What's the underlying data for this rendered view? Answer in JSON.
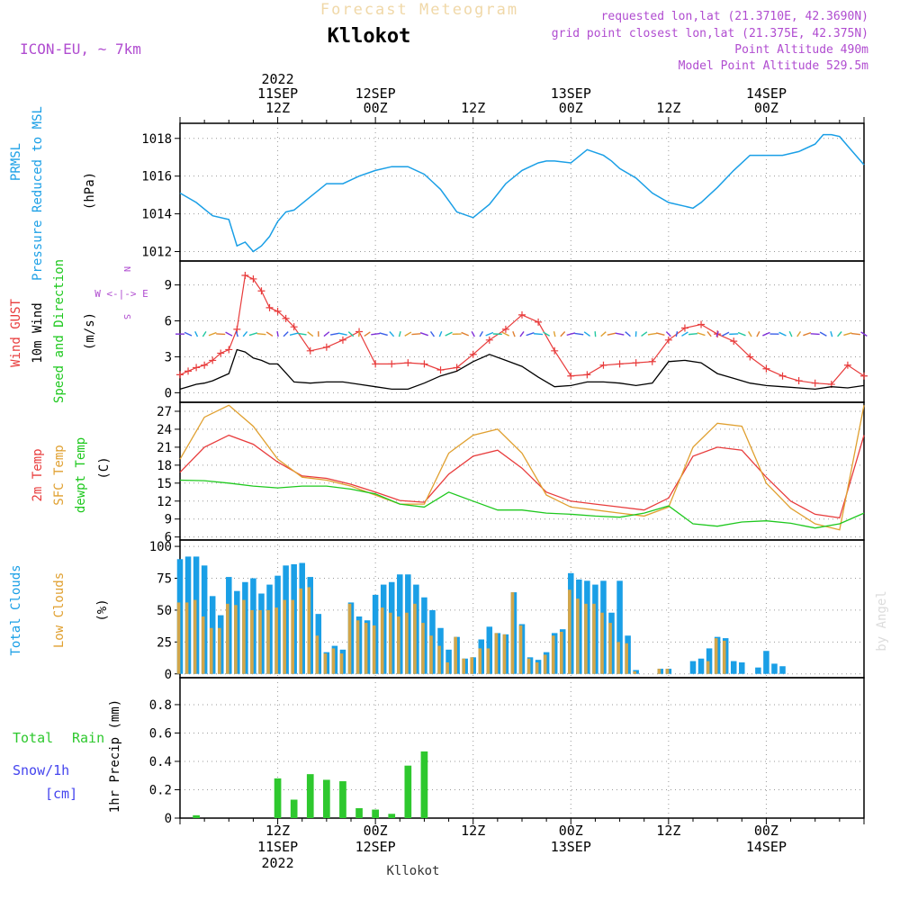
{
  "header": {
    "title": "Forecast Meteogram",
    "location": "Kllokot",
    "model": "ICON-EU, ~ 7km",
    "requested": "requested lon,lat (21.3710E, 42.3690N)",
    "gridpoint": "grid point closest lon,lat (21.375E, 42.375N)",
    "point_alt": "Point Altitude 490m",
    "model_alt": "Model Point Altitude 529.5m",
    "footer_location": "Kllokot",
    "watermark": "by Angel"
  },
  "time_axis": {
    "year": "2022",
    "major_ticks": [
      {
        "hour": 12,
        "line1": "12Z",
        "line2": "11SEP",
        "line3": "2022"
      },
      {
        "hour": 24,
        "line1": "00Z",
        "line2": "12SEP",
        "line3": ""
      },
      {
        "hour": 36,
        "line1": "12Z",
        "line2": "",
        "line3": ""
      },
      {
        "hour": 48,
        "line1": "00Z",
        "line2": "13SEP",
        "line3": ""
      },
      {
        "hour": 60,
        "line1": "12Z",
        "line2": "",
        "line3": ""
      },
      {
        "hour": 72,
        "line1": "00Z",
        "line2": "14SEP",
        "line3": ""
      }
    ],
    "top_labels": [
      {
        "hour": 12,
        "lines": [
          "2022",
          "11SEP",
          "12Z"
        ]
      },
      {
        "hour": 24,
        "lines": [
          "12SEP",
          "00Z"
        ]
      },
      {
        "hour": 36,
        "lines": [
          "12Z"
        ]
      },
      {
        "hour": 48,
        "lines": [
          "13SEP",
          "00Z"
        ]
      },
      {
        "hour": 60,
        "lines": [
          "12Z"
        ]
      },
      {
        "hour": 72,
        "lines": [
          "14SEP",
          "00Z"
        ]
      }
    ],
    "bottom_labels": [
      {
        "hour": 12,
        "lines": [
          "12Z",
          "11SEP",
          "2022"
        ]
      },
      {
        "hour": 24,
        "lines": [
          "00Z",
          "12SEP"
        ]
      },
      {
        "hour": 36,
        "lines": [
          "12Z"
        ]
      },
      {
        "hour": 48,
        "lines": [
          "00Z",
          "13SEP"
        ]
      },
      {
        "hour": 60,
        "lines": [
          "12Z"
        ]
      },
      {
        "hour": 72,
        "lines": [
          "00Z",
          "14SEP"
        ]
      }
    ]
  },
  "panel_labels": {
    "pressure": [
      "PRMSL",
      "Pressure Reduced to MSL",
      "(hPa)"
    ],
    "wind": [
      "Wind GUST",
      "10m Wind",
      "Speed and Direction",
      "(m/s)"
    ],
    "compass": [
      "N",
      "W <-|-> E",
      "S"
    ],
    "temp": [
      "2m Temp",
      "SFC Temp",
      "dewpt Temp",
      "(C)"
    ],
    "clouds": [
      "Total Clouds",
      "Low Clouds",
      "(%)"
    ],
    "precip": [
      "Total",
      "Rain",
      "Snow/1h",
      "[cm]",
      "1hr Precip (mm)"
    ]
  },
  "colors": {
    "pressure": "#1a9fe6",
    "gust": "#e83c3c",
    "wind": "#000000",
    "t2m": "#e83c3c",
    "sfc": "#e0a030",
    "dewpt": "#1ec81e",
    "total_clouds": "#1a9fe6",
    "low_clouds": "#d2a64a",
    "rain": "#2ec82e",
    "snow": "#4444ee",
    "meta": "#b04cd0",
    "title_faded": "#f0d8a8"
  },
  "chart_data": [
    {
      "type": "line",
      "name": "pressure",
      "ylim": [
        1011.5,
        1018.8
      ],
      "yticks": [
        1012,
        1014,
        1016,
        1018
      ],
      "x": [
        0,
        2,
        4,
        6,
        7,
        8,
        9,
        10,
        11,
        12,
        13,
        14,
        16,
        18,
        20,
        22,
        24,
        26,
        28,
        30,
        31,
        32,
        33,
        34,
        36,
        38,
        40,
        42,
        43,
        44,
        45,
        46,
        48,
        50,
        52,
        53,
        54,
        56,
        58,
        60,
        62,
        63,
        64,
        66,
        68,
        70,
        72,
        74,
        76,
        78,
        79,
        80,
        81,
        82,
        84
      ],
      "values": [
        1015.1,
        1014.6,
        1013.9,
        1013.7,
        1012.3,
        1012.5,
        1012.0,
        1012.3,
        1012.8,
        1013.6,
        1014.1,
        1014.2,
        1014.9,
        1015.6,
        1015.6,
        1016.0,
        1016.3,
        1016.5,
        1016.5,
        1016.1,
        1015.7,
        1015.3,
        1014.7,
        1014.1,
        1013.8,
        1014.5,
        1015.6,
        1016.3,
        1016.5,
        1016.7,
        1016.8,
        1016.8,
        1016.7,
        1017.4,
        1017.1,
        1016.8,
        1016.4,
        1015.9,
        1015.1,
        1014.6,
        1014.4,
        1014.3,
        1014.6,
        1015.4,
        1016.3,
        1017.1,
        1017.1,
        1017.1,
        1017.3,
        1017.7,
        1018.2,
        1018.2,
        1018.1,
        1017.6,
        1016.6
      ]
    },
    {
      "type": "line",
      "name": "wind_gust",
      "ylim": [
        -0.8,
        11
      ],
      "yticks": [
        0,
        3,
        6,
        9
      ],
      "x": [
        0,
        1,
        2,
        3,
        4,
        5,
        6,
        7,
        8,
        9,
        10,
        11,
        12,
        13,
        14,
        16,
        18,
        20,
        22,
        24,
        26,
        28,
        30,
        32,
        34,
        36,
        38,
        40,
        42,
        44,
        46,
        48,
        50,
        52,
        54,
        56,
        58,
        60,
        62,
        64,
        66,
        68,
        70,
        72,
        74,
        76,
        78,
        80,
        82,
        84
      ],
      "values": [
        1.5,
        1.8,
        2.1,
        2.3,
        2.7,
        3.3,
        3.6,
        5.3,
        9.8,
        9.5,
        8.5,
        7.1,
        6.8,
        6.2,
        5.5,
        3.5,
        3.8,
        4.4,
        5.1,
        2.4,
        2.4,
        2.5,
        2.4,
        1.9,
        2.1,
        3.2,
        4.4,
        5.3,
        6.5,
        5.9,
        3.5,
        1.4,
        1.5,
        2.3,
        2.4,
        2.5,
        2.6,
        4.4,
        5.4,
        5.7,
        4.9,
        4.3,
        3.0,
        2.0,
        1.4,
        1.0,
        0.8,
        0.7,
        2.3,
        1.4
      ]
    },
    {
      "type": "line",
      "name": "wind_10m",
      "ylim": [
        -0.8,
        11
      ],
      "x": [
        0,
        1,
        2,
        3,
        4,
        5,
        6,
        7,
        8,
        9,
        10,
        11,
        12,
        14,
        16,
        18,
        20,
        22,
        24,
        26,
        28,
        30,
        32,
        34,
        35,
        36,
        37,
        38,
        40,
        42,
        44,
        46,
        48,
        50,
        52,
        54,
        56,
        58,
        60,
        62,
        64,
        66,
        68,
        70,
        72,
        74,
        76,
        78,
        80,
        82,
        84
      ],
      "values": [
        0.3,
        0.5,
        0.7,
        0.8,
        1.0,
        1.3,
        1.6,
        3.6,
        3.4,
        2.9,
        2.7,
        2.4,
        2.4,
        0.9,
        0.8,
        0.9,
        0.9,
        0.7,
        0.5,
        0.3,
        0.3,
        0.8,
        1.4,
        1.8,
        2.2,
        2.6,
        2.9,
        3.2,
        2.7,
        2.2,
        1.3,
        0.5,
        0.6,
        0.9,
        0.9,
        0.8,
        0.6,
        0.8,
        2.6,
        2.7,
        2.5,
        1.6,
        1.2,
        0.8,
        0.6,
        0.5,
        0.4,
        0.3,
        0.5,
        0.4,
        0.6
      ]
    },
    {
      "type": "line",
      "name": "temperature",
      "ylim": [
        5.5,
        28.5
      ],
      "yticks": [
        6,
        9,
        12,
        15,
        18,
        21,
        24,
        27
      ],
      "x": [
        0,
        3,
        6,
        9,
        12,
        15,
        18,
        21,
        24,
        27,
        30,
        33,
        36,
        39,
        42,
        45,
        48,
        51,
        54,
        57,
        60,
        63,
        66,
        69,
        72,
        75,
        78,
        81,
        84
      ],
      "series": [
        {
          "name": "2m Temp",
          "values": [
            16.8,
            21,
            23,
            21.5,
            18.5,
            16.2,
            15.8,
            14.8,
            13.5,
            12.1,
            11.8,
            16.5,
            19.5,
            20.5,
            17.5,
            13.5,
            12,
            11.5,
            11,
            10.5,
            12.5,
            19.5,
            21,
            20.5,
            16,
            12,
            9.8,
            9.2,
            23
          ]
        },
        {
          "name": "SFC Temp",
          "values": [
            19,
            26,
            28,
            24.5,
            19,
            16,
            15.5,
            14.5,
            13,
            11.5,
            11.5,
            20,
            23,
            24,
            20,
            13,
            11,
            10.5,
            10,
            9.5,
            11,
            21,
            25,
            24.5,
            15,
            10.8,
            8.2,
            7.2,
            28
          ]
        },
        {
          "name": "dewpt Temp",
          "values": [
            15.5,
            15.4,
            15,
            14.5,
            14.2,
            14.5,
            14.5,
            14,
            13.2,
            11.5,
            11,
            13.5,
            12,
            10.5,
            10.5,
            10,
            9.8,
            9.5,
            9.3,
            10,
            11.2,
            8.2,
            7.8,
            8.5,
            8.7,
            8.3,
            7.5,
            8.2,
            10
          ]
        }
      ]
    },
    {
      "type": "bar",
      "name": "clouds",
      "ylim": [
        -3,
        105
      ],
      "yticks": [
        0,
        25,
        50,
        75,
        100
      ],
      "x_start": 0,
      "x_step": 1,
      "series": [
        {
          "name": "Total Clouds",
          "values": [
            90,
            92,
            92,
            85,
            61,
            46,
            76,
            65,
            72,
            75,
            63,
            70,
            77,
            85,
            86,
            87,
            76,
            47,
            17,
            22,
            19,
            56,
            45,
            42,
            62,
            70,
            72,
            78,
            78,
            70,
            60,
            50,
            36,
            19,
            29,
            12,
            13,
            27,
            37,
            32,
            31,
            64,
            39,
            13,
            11,
            17,
            32,
            35,
            79,
            74,
            73,
            70,
            73,
            48,
            73,
            30,
            3,
            0,
            0,
            4,
            4,
            0,
            0,
            10,
            12,
            20,
            29,
            28,
            10,
            9,
            0,
            5,
            18,
            8,
            6
          ]
        },
        {
          "name": "Low Clouds",
          "values": [
            56,
            56,
            58,
            45,
            36,
            36,
            55,
            54,
            58,
            50,
            50,
            50,
            52,
            58,
            58,
            67,
            68,
            30,
            16,
            20,
            16,
            55,
            42,
            40,
            38,
            52,
            48,
            45,
            48,
            55,
            40,
            30,
            22,
            9,
            29,
            12,
            13,
            20,
            20,
            32,
            31,
            64,
            38,
            12,
            9,
            15,
            30,
            33,
            66,
            59,
            55,
            55,
            48,
            40,
            25,
            24,
            2,
            0,
            0,
            4,
            4,
            0,
            0,
            0,
            0,
            10,
            28,
            26,
            0,
            0,
            0,
            0,
            0,
            0,
            0
          ]
        }
      ]
    },
    {
      "type": "bar",
      "name": "precipitation",
      "ylim": [
        0,
        0.99
      ],
      "yticks": [
        0,
        0.2,
        0.4,
        0.6,
        0.8
      ],
      "series": [
        {
          "name": "Total Rain",
          "x": [
            2,
            12,
            14,
            16,
            18,
            20,
            22,
            24,
            26,
            28,
            30,
            32
          ],
          "values": [
            0.02,
            0.28,
            0.13,
            0.31,
            0.27,
            0.26,
            0.07,
            0.06,
            0.03,
            0.37,
            0.47,
            0.0
          ]
        },
        {
          "name": "Snow/1h",
          "x": [],
          "values": []
        }
      ]
    }
  ]
}
